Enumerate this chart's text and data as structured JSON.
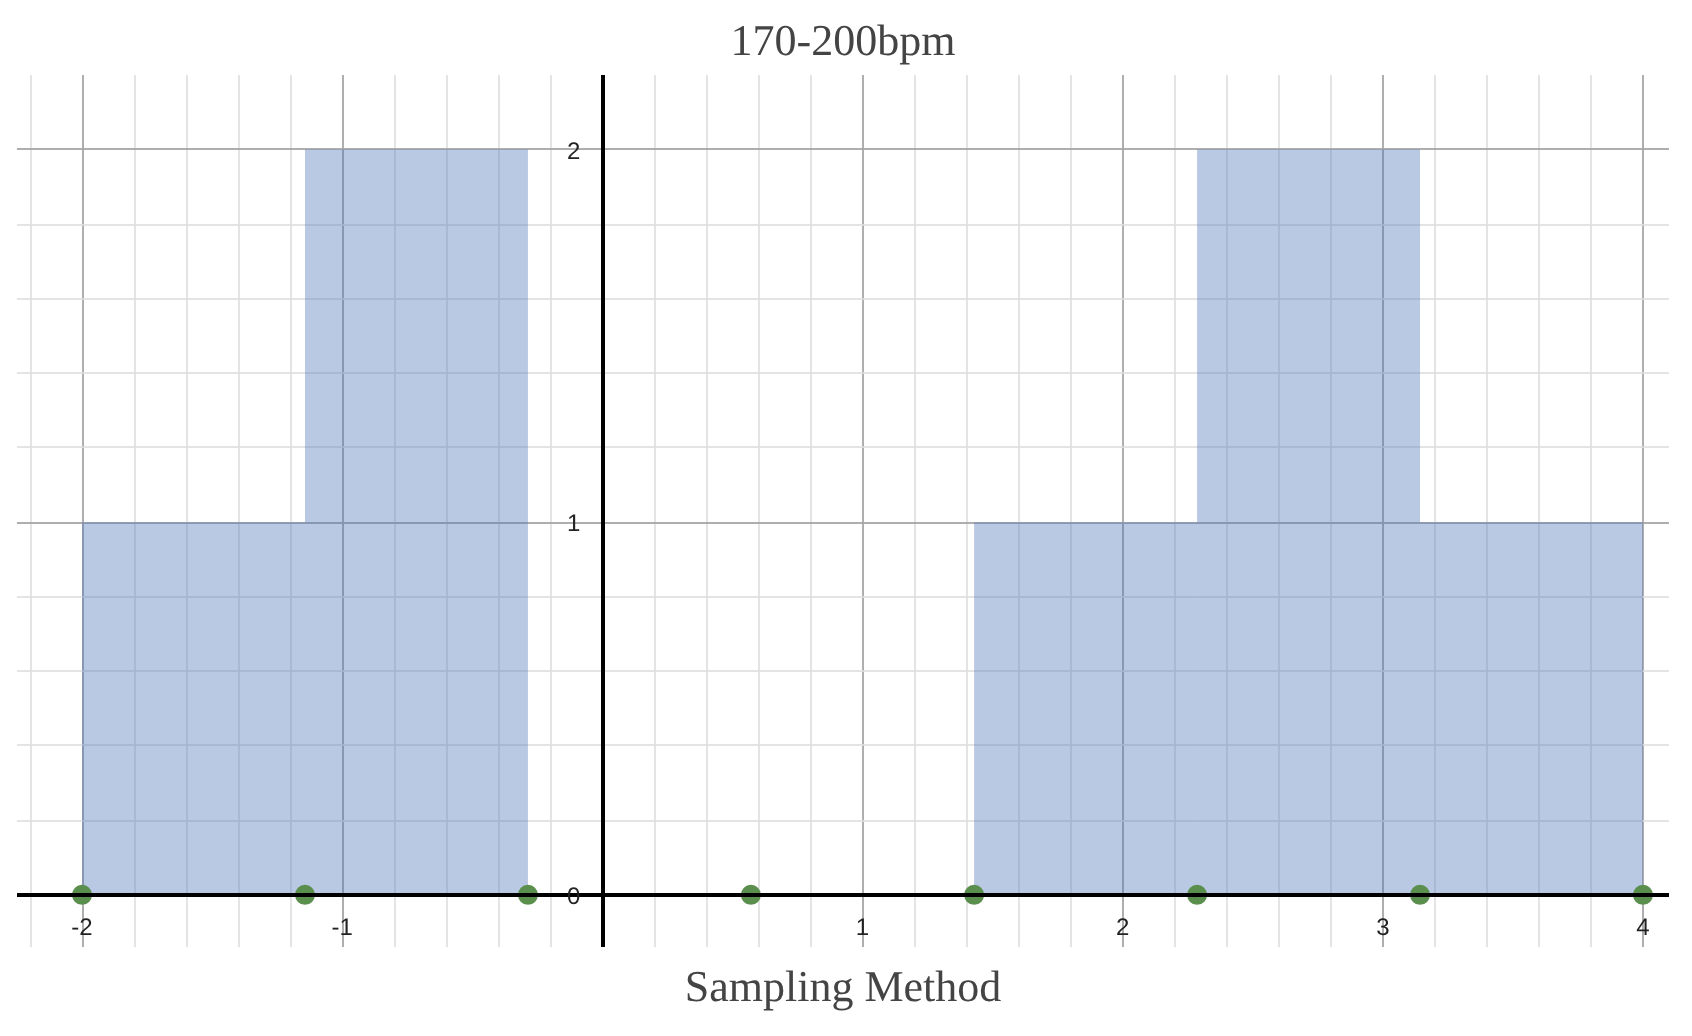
{
  "chart_data": {
    "type": "histogram",
    "title": "170-200bpm",
    "xlabel": "Sampling Method",
    "bins": [
      -2,
      -1.143,
      -0.286,
      0.571,
      1.429,
      2.286,
      3.143,
      4
    ],
    "values": [
      1,
      2,
      0,
      0,
      1,
      2,
      1
    ],
    "color": "#4f76b8",
    "xlim": [
      -2.25,
      4.1
    ],
    "ylim": [
      -0.14,
      2.2
    ],
    "xticks": [
      -2,
      -1,
      {
        "value": 0,
        "label": null
      },
      1,
      2,
      3,
      4
    ],
    "yticks": [
      0,
      1,
      2
    ],
    "grid": true,
    "marker": "circle",
    "series": [
      {
        "type": "scatter",
        "x": [
          -2,
          -1.143,
          -0.286,
          0.571,
          1.429,
          2.286,
          3.143,
          4
        ],
        "values": [
          0,
          0,
          0,
          0,
          0,
          0,
          0,
          0
        ],
        "color": "#5b8f4e"
      }
    ]
  }
}
